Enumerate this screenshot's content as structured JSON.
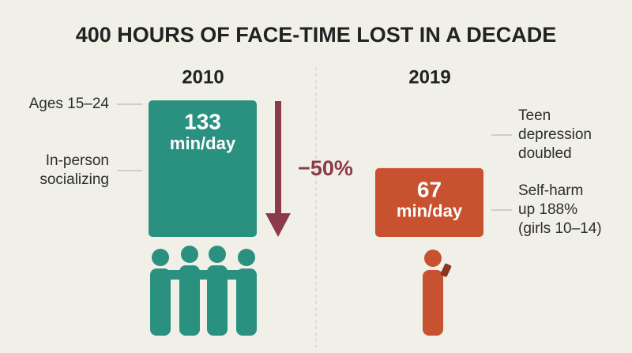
{
  "title": "400 HOURS OF FACE-TIME LOST IN A DECADE",
  "bars": [
    {
      "year": "2010",
      "value": 133,
      "unit": "min/day"
    },
    {
      "year": "2019",
      "value": 67,
      "unit": "min/day"
    }
  ],
  "change": "−50%",
  "left_labels": [
    [
      "Ages 15–24"
    ],
    [
      "In-person",
      "socializing"
    ]
  ],
  "right_labels": [
    [
      "Teen",
      "depression",
      "doubled"
    ],
    [
      "Self-harm",
      "up 188%",
      "(girls 10–14)"
    ]
  ]
}
